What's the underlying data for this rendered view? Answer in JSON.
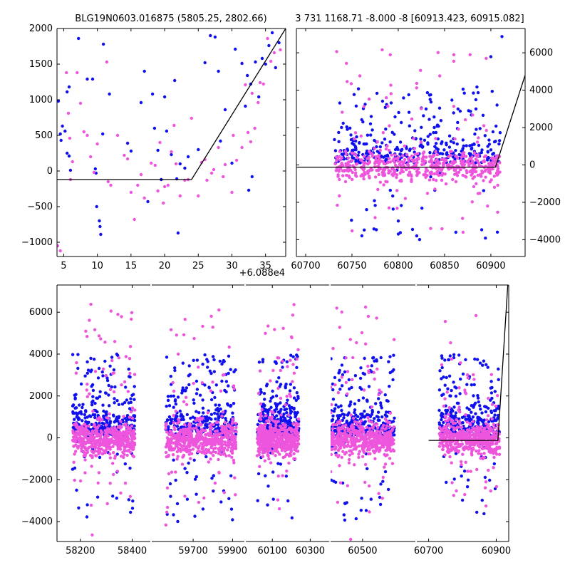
{
  "title_left": "BLG19N0603.016875 (5805.25, 2802.66)",
  "title_right": "3 731 1168.71 -8.000 -8 [60913.423, 60915.082]",
  "offset_label": "+6.088e4",
  "colors": {
    "series_a": "#1010ee",
    "series_b": "#ee55dd",
    "model": "#000000"
  },
  "chart_data": [
    {
      "id": "zoom-left",
      "type": "scatter",
      "xlim": [
        4,
        38
      ],
      "ylim": [
        -1200,
        2000
      ],
      "xticks": [
        5,
        10,
        15,
        20,
        25,
        30,
        35
      ],
      "yticks": [
        -1000,
        -500,
        0,
        500,
        1000,
        1500,
        2000
      ],
      "x_offset": 60880,
      "model_line": {
        "x": [
          4,
          24,
          38
        ],
        "y": [
          -120,
          -120,
          2000
        ]
      },
      "series": [
        {
          "color_key": "series_a",
          "points": [
            [
              4.2,
              980
            ],
            [
              4.5,
              520
            ],
            [
              4.6,
              430
            ],
            [
              4.8,
              630
            ],
            [
              5.2,
              560
            ],
            [
              5.5,
              1110
            ],
            [
              5.8,
              1180
            ],
            [
              5.5,
              250
            ],
            [
              5.8,
              210
            ],
            [
              6.0,
              10
            ],
            [
              7.2,
              1860
            ],
            [
              8.5,
              1290
            ],
            [
              9.3,
              1290
            ],
            [
              9.7,
              30
            ],
            [
              9.8,
              -30
            ],
            [
              9.9,
              -500
            ],
            [
              10.3,
              -700
            ],
            [
              10.4,
              -780
            ],
            [
              10.5,
              -890
            ],
            [
              10.8,
              520
            ],
            [
              10.9,
              1780
            ],
            [
              11.8,
              1080
            ],
            [
              14.5,
              390
            ],
            [
              15.0,
              280
            ],
            [
              16.5,
              960
            ],
            [
              17.0,
              1400
            ],
            [
              17.5,
              -430
            ],
            [
              18.2,
              1080
            ],
            [
              18.5,
              600
            ],
            [
              19.0,
              290
            ],
            [
              19.5,
              -120
            ],
            [
              20.0,
              1040
            ],
            [
              20.3,
              560
            ],
            [
              21.0,
              230
            ],
            [
              21.5,
              1270
            ],
            [
              21.8,
              -110
            ],
            [
              22.0,
              -870
            ],
            [
              22.3,
              100
            ],
            [
              23.0,
              40
            ],
            [
              23.5,
              200
            ],
            [
              25.0,
              300
            ],
            [
              26.0,
              1520
            ],
            [
              26.8,
              1900
            ],
            [
              27.5,
              1880
            ],
            [
              28.0,
              1400
            ],
            [
              28.3,
              420
            ],
            [
              29.0,
              860
            ],
            [
              30.0,
              110
            ],
            [
              30.5,
              1710
            ],
            [
              31.5,
              1510
            ],
            [
              32.0,
              910
            ],
            [
              32.3,
              1340
            ],
            [
              32.8,
              1220
            ],
            [
              33.0,
              -80
            ],
            [
              33.5,
              1530
            ],
            [
              34.0,
              1040
            ],
            [
              34.5,
              1580
            ],
            [
              35.0,
              1500
            ],
            [
              35.5,
              1760
            ],
            [
              36.0,
              1940
            ],
            [
              37.0,
              1800
            ],
            [
              36.5,
              1450
            ],
            [
              32.5,
              -270
            ]
          ]
        },
        {
          "color_key": "series_b",
          "points": [
            [
              4.1,
              -1050
            ],
            [
              4.5,
              -1120
            ],
            [
              5.4,
              1380
            ],
            [
              5.7,
              810
            ],
            [
              5.9,
              460
            ],
            [
              6.0,
              -120
            ],
            [
              6.3,
              130
            ],
            [
              7.0,
              1380
            ],
            [
              7.5,
              950
            ],
            [
              8.0,
              550
            ],
            [
              8.5,
              500
            ],
            [
              9.0,
              200
            ],
            [
              9.5,
              -20
            ],
            [
              10.0,
              380
            ],
            [
              11.4,
              1530
            ],
            [
              11.6,
              -150
            ],
            [
              12.0,
              -200
            ],
            [
              13.0,
              500
            ],
            [
              14.0,
              220
            ],
            [
              14.5,
              170
            ],
            [
              15.0,
              -300
            ],
            [
              15.5,
              -680
            ],
            [
              16.0,
              -200
            ],
            [
              16.5,
              -50
            ],
            [
              17.0,
              -380
            ],
            [
              18.0,
              110
            ],
            [
              18.6,
              80
            ],
            [
              19.0,
              -280
            ],
            [
              19.3,
              400
            ],
            [
              19.8,
              -450
            ],
            [
              20.0,
              -220
            ],
            [
              20.5,
              -200
            ],
            [
              21.0,
              270
            ],
            [
              21.4,
              640
            ],
            [
              21.7,
              100
            ],
            [
              22.3,
              -350
            ],
            [
              23.0,
              -130
            ],
            [
              23.5,
              -120
            ],
            [
              24.0,
              740
            ],
            [
              25.0,
              -350
            ],
            [
              25.5,
              120
            ],
            [
              26.0,
              160
            ],
            [
              26.3,
              -130
            ],
            [
              27.0,
              -30
            ],
            [
              28.0,
              330
            ],
            [
              29.0,
              90
            ],
            [
              30.2,
              500
            ],
            [
              30.7,
              150
            ],
            [
              31.5,
              330
            ],
            [
              32.0,
              1210
            ],
            [
              32.4,
              540
            ],
            [
              32.8,
              410
            ],
            [
              33.0,
              1090
            ],
            [
              33.4,
              600
            ],
            [
              33.9,
              960
            ],
            [
              34.2,
              1240
            ],
            [
              34.7,
              1220
            ],
            [
              35.3,
              1860
            ],
            [
              35.8,
              1540
            ],
            [
              36.3,
              1660
            ],
            [
              37.2,
              1700
            ],
            [
              30.0,
              -300
            ],
            [
              28.7,
              -80
            ],
            [
              27.3,
              20
            ]
          ]
        }
      ]
    },
    {
      "id": "zoom-right",
      "type": "scatter",
      "xlim": [
        60690,
        60937
      ],
      "ylim": [
        -4900,
        7300
      ],
      "xticks": [
        60700,
        60750,
        60800,
        60850,
        60900
      ],
      "yticks": [
        -4000,
        -2000,
        0,
        2000,
        4000,
        6000
      ],
      "model_line": {
        "x": [
          60690,
          60905,
          60937
        ],
        "y": [
          -120,
          -120,
          4800
        ]
      },
      "cloud": {
        "x_range": [
          60731,
          60910
        ],
        "seed": 7,
        "n_a": 360,
        "n_b": 560
      },
      "outliers_a": [
        [
          60757,
          4070
        ],
        [
          60800,
          -3000
        ],
        [
          60783,
          3410
        ],
        [
          60835,
          3750
        ],
        [
          60858,
          3470
        ],
        [
          60900,
          5790
        ],
        [
          60912,
          6870
        ],
        [
          60870,
          4050
        ],
        [
          60885,
          4170
        ],
        [
          60800,
          -3700
        ],
        [
          60820,
          -3800
        ],
        [
          60770,
          2200
        ],
        [
          60745,
          1900
        ]
      ],
      "outliers_b": [
        [
          60843,
          6010
        ],
        [
          60860,
          5550
        ],
        [
          60895,
          5700
        ],
        [
          60820,
          4370
        ],
        [
          60775,
          -2820
        ],
        [
          60870,
          -3600
        ],
        [
          60835,
          -3400
        ],
        [
          60790,
          -2300
        ]
      ]
    },
    {
      "id": "full-light-curve",
      "type": "scatter",
      "ylim": [
        -4950,
        7300
      ],
      "yticks": [
        -4000,
        -2000,
        0,
        2000,
        4000,
        6000
      ],
      "panels": [
        {
          "xlim": [
            58110,
            58470
          ],
          "xticks": [
            58200,
            58400
          ],
          "season": [
            58170,
            58410
          ],
          "seed": 11
        },
        {
          "xlim": [
            59490,
            59960
          ],
          "xticks": [
            59700,
            59900
          ],
          "season": [
            59560,
            59920
          ],
          "seed": 23
        },
        {
          "xlim": [
            59960,
            60400
          ],
          "xticks": [
            60100,
            60300
          ],
          "season": [
            60020,
            60240
          ],
          "seed": 31
        },
        {
          "xlim": [
            60400,
            60665
          ],
          "xticks": [
            60500
          ],
          "season": [
            60400,
            60600
          ],
          "seed": 43
        },
        {
          "xlim": [
            60665,
            60937
          ],
          "xticks": [
            60700,
            60900
          ],
          "season": [
            60731,
            60910
          ],
          "seed": 57
        }
      ],
      "model_line": {
        "x": [
          60700,
          60905,
          60937
        ],
        "y": [
          -120,
          -120,
          8000
        ]
      }
    }
  ]
}
